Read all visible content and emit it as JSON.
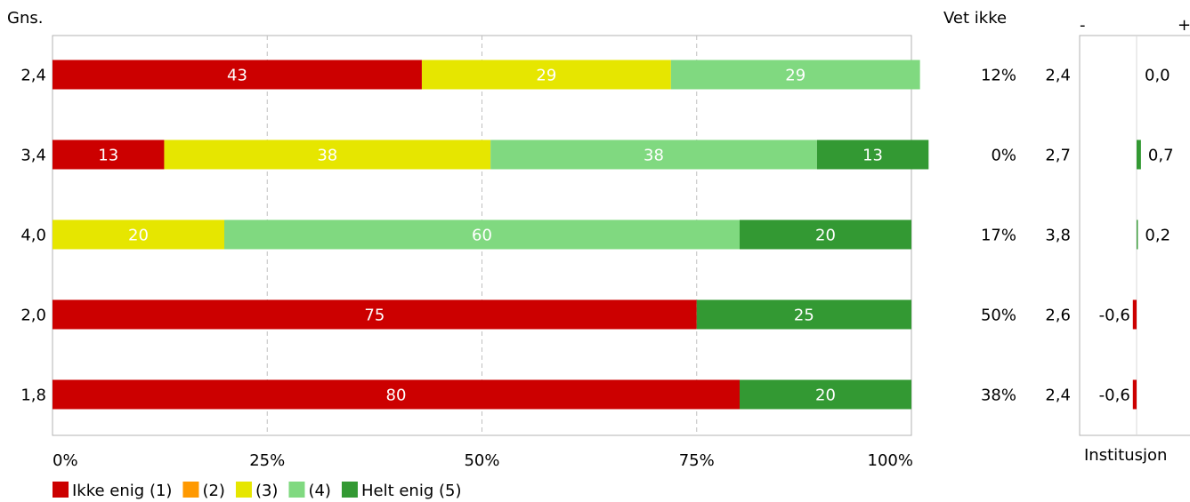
{
  "chart_data": {
    "type": "bar",
    "stacked": true,
    "orientation": "horizontal",
    "avg_header": "Gns.",
    "averages": [
      "2,4",
      "3,4",
      "4,0",
      "2,0",
      "1,8"
    ],
    "x_ticks": [
      "0%",
      "25%",
      "50%",
      "75%",
      "100%"
    ],
    "xlim": [
      0,
      100
    ],
    "grid": "vertical dashed",
    "legend": "bottom-left",
    "series": [
      {
        "name": "Ikke enig (1)",
        "color": "#cc0000",
        "values": [
          43,
          13,
          0,
          75,
          80
        ]
      },
      {
        "name": "(2)",
        "color": "#ff9900",
        "values": [
          0,
          0,
          0,
          0,
          0
        ]
      },
      {
        "name": "(3)",
        "color": "#e6e600",
        "values": [
          29,
          38,
          20,
          0,
          0
        ]
      },
      {
        "name": "(4)",
        "color": "#80d980",
        "values": [
          29,
          38,
          60,
          0,
          0
        ]
      },
      {
        "name": "Helt enig (5)",
        "color": "#339933",
        "values": [
          0,
          13,
          20,
          25,
          20
        ]
      }
    ],
    "side_table": {
      "header": "Vet ikke",
      "vet_ikke": [
        "12%",
        "0%",
        "17%",
        "50%",
        "38%"
      ],
      "inst_avg": [
        "2,4",
        "2,7",
        "3,8",
        "2,6",
        "2,4"
      ]
    },
    "diff_panel": {
      "minus_label": "-",
      "plus_label": "+",
      "title": "Institusjon",
      "values": [
        0.0,
        0.7,
        0.2,
        -0.6,
        -0.6
      ],
      "labels": [
        "0,0",
        "0,7",
        "0,2",
        "-0,6",
        "-0,6"
      ],
      "positive_color": "#339933",
      "negative_color": "#cc0000"
    }
  }
}
